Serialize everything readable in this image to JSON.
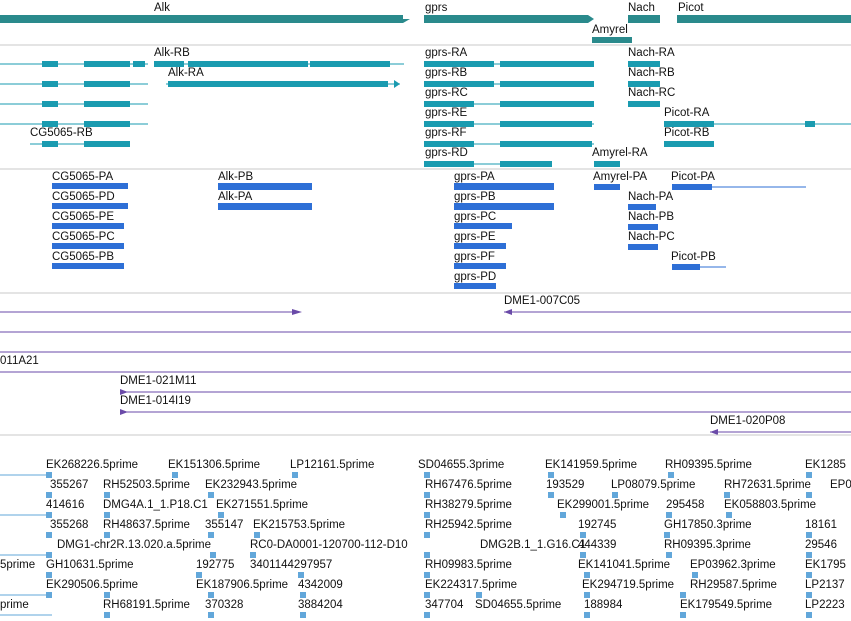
{
  "colors": {
    "gene": "#2a8a8c",
    "transcript": "#1a9bb0",
    "protein": "#2e6fd6",
    "clone": "#6a4aa8",
    "est": "#62a7da",
    "separator": "#c8c8c8"
  },
  "tracks": {
    "genes": {
      "labels": [
        "Alk",
        "gprs",
        "Nach",
        "Picot",
        "Amyrel"
      ]
    },
    "transcripts": {
      "labels": [
        "Alk-RB",
        "Alk-RA",
        "CG5065-RB",
        "gprs-RA",
        "gprs-RB",
        "gprs-RC",
        "gprs-RE",
        "gprs-RF",
        "gprs-RD",
        "Nach-RA",
        "Nach-RB",
        "Nach-RC",
        "Picot-RA",
        "Picot-RB",
        "Amyrel-RA"
      ]
    },
    "proteins": {
      "labels": [
        "CG5065-PA",
        "CG5065-PD",
        "CG5065-PE",
        "CG5065-PC",
        "CG5065-PB",
        "Alk-PB",
        "Alk-PA",
        "gprs-PA",
        "gprs-PB",
        "gprs-PC",
        "gprs-PE",
        "gprs-PF",
        "gprs-PD",
        "Amyrel-PA",
        "Picot-PA",
        "Nach-PA",
        "Nach-PB",
        "Nach-PC",
        "Picot-PB"
      ]
    },
    "clones": {
      "labels": [
        "DME1-007C05",
        "011A21",
        "DME1-021M11",
        "DME1-014I19",
        "DME1-020P08"
      ]
    },
    "ests": {
      "labels": [
        "EK268226.5prime",
        "EK151306.5prime",
        "LP12161.5prime",
        "SD04655.3prime",
        "EK141959.5prime",
        "RH09395.5prime",
        "EK1285",
        "355267",
        "RH52503.5prime",
        "EK232943.5prime",
        "RH67476.5prime",
        "193529",
        "LP08079.5prime",
        "RH72631.5prime",
        "EP0",
        "414616",
        "DMG4A.1_1.P18.C1",
        "EK271551.5prime",
        "RH38279.5prime",
        "EK299001.5prime",
        "295458",
        "EK058803.5prime",
        "355268",
        "RH48637.5prime",
        "355147",
        "EK215753.5prime",
        "RH25942.5prime",
        "192745",
        "GH17850.3prime",
        "18161",
        "DMG1-chr2R.13.020.a.5prime",
        "RC0-DA0001-120700-112-D10",
        "DMG2B.1_1.G16.C1",
        "444339",
        "RH09395.3prime",
        "29546",
        "5prime",
        "GH10631.5prime",
        "192775",
        "3401144297957",
        "RH09983.5prime",
        "EK141041.5prime",
        "EP03962.3prime",
        "EK1795",
        "EK290506.5prime",
        "EK187906.5prime",
        "4342009",
        "EK224317.5prime",
        "EK294719.5prime",
        "RH29587.5prime",
        "LP2137",
        "prime",
        "RH68191.5prime",
        "370328",
        "3884204",
        "347704",
        "SD04655.5prime",
        "188984",
        "EK179549.5prime",
        "LP2223"
      ]
    }
  }
}
